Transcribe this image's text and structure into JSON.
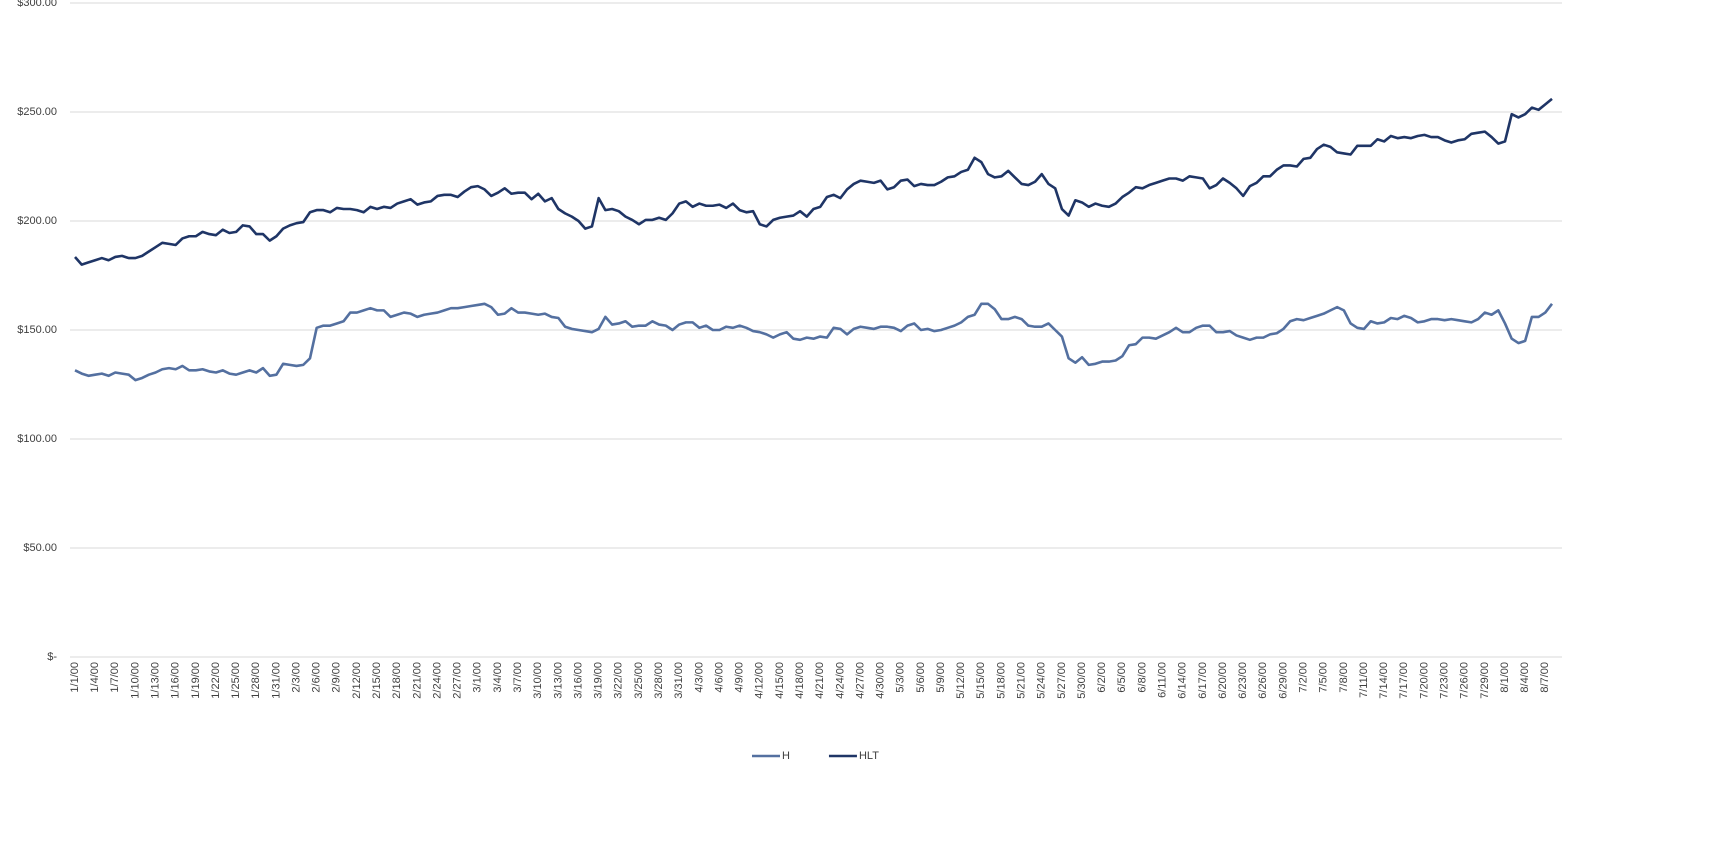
{
  "chart_data": {
    "type": "line",
    "categories": [
      "1/1/00",
      null,
      null,
      "1/4/00",
      null,
      null,
      "1/7/00",
      null,
      null,
      "1/10/00",
      null,
      null,
      "1/13/00",
      null,
      null,
      "1/16/00",
      null,
      null,
      "1/19/00",
      null,
      null,
      "1/22/00",
      null,
      null,
      "1/25/00",
      null,
      null,
      "1/28/00",
      null,
      null,
      "1/31/00",
      null,
      null,
      "2/3/00",
      null,
      null,
      "2/6/00",
      null,
      null,
      "2/9/00",
      null,
      null,
      "2/12/00",
      null,
      null,
      "2/15/00",
      null,
      null,
      "2/18/00",
      null,
      null,
      "2/21/00",
      null,
      null,
      "2/24/00",
      null,
      null,
      "2/27/00",
      null,
      null,
      "3/1/00",
      null,
      null,
      "3/4/00",
      null,
      null,
      "3/7/00",
      null,
      null,
      "3/10/00",
      null,
      null,
      "3/13/00",
      null,
      null,
      "3/16/00",
      null,
      null,
      "3/19/00",
      null,
      null,
      "3/22/00",
      null,
      null,
      "3/25/00",
      null,
      null,
      "3/28/00",
      null,
      null,
      "3/31/00",
      null,
      null,
      "4/3/00",
      null,
      null,
      "4/6/00",
      null,
      null,
      "4/9/00",
      null,
      null,
      "4/12/00",
      null,
      null,
      "4/15/00",
      null,
      null,
      "4/18/00",
      null,
      null,
      "4/21/00",
      null,
      null,
      "4/24/00",
      null,
      null,
      "4/27/00",
      null,
      null,
      "4/30/00",
      null,
      null,
      "5/3/00",
      null,
      null,
      "5/6/00",
      null,
      null,
      "5/9/00",
      null,
      null,
      "5/12/00",
      null,
      null,
      "5/15/00",
      null,
      null,
      "5/18/00",
      null,
      null,
      "5/21/00",
      null,
      null,
      "5/24/00",
      null,
      null,
      "5/27/00",
      null,
      null,
      "5/30/00",
      null,
      null,
      "6/2/00",
      null,
      null,
      "6/5/00",
      null,
      null,
      "6/8/00",
      null,
      null,
      "6/11/00",
      null,
      null,
      "6/14/00",
      null,
      null,
      "6/17/00",
      null,
      null,
      "6/20/00",
      null,
      null,
      "6/23/00",
      null,
      null,
      "6/26/00",
      null,
      null,
      "6/29/00",
      null,
      null,
      "7/2/00",
      null,
      null,
      "7/5/00",
      null,
      null,
      "7/8/00",
      null,
      null,
      "7/11/00",
      null,
      null,
      "7/14/00",
      null,
      null,
      "7/17/00",
      null,
      null,
      "7/20/00",
      null,
      null,
      "7/23/00",
      null,
      null,
      "7/26/00",
      null,
      null,
      "7/29/00",
      null,
      null,
      "8/1/00",
      null,
      null,
      "8/4/00",
      null,
      null,
      "8/7/00",
      null
    ],
    "series": [
      {
        "name": "H",
        "color": "#5470a0",
        "values": [
          131.5,
          130,
          129,
          129.5,
          130,
          129,
          130.5,
          130,
          129.5,
          127,
          128,
          129.5,
          130.5,
          132,
          132.5,
          132,
          133.5,
          131.5,
          131.5,
          132,
          131,
          130.5,
          131.5,
          130,
          129.5,
          130.5,
          131.5,
          130.5,
          132.5,
          129,
          129.5,
          134.5,
          134,
          133.5,
          134,
          137,
          151,
          152,
          152,
          153,
          154,
          158,
          158,
          159,
          160,
          159,
          159,
          156,
          157,
          158,
          157.5,
          156,
          157,
          157.5,
          158,
          159,
          160,
          160,
          160.5,
          161,
          161.5,
          162,
          160.5,
          157,
          157.5,
          160,
          158,
          158,
          157.5,
          157,
          157.5,
          156,
          155.5,
          151.5,
          150.5,
          150,
          149.5,
          149,
          150.5,
          156,
          152.5,
          153,
          154,
          151.5,
          152,
          152,
          154,
          152.5,
          152,
          150,
          152.5,
          153.5,
          153.5,
          151,
          152,
          150,
          150,
          151.5,
          151,
          152,
          151,
          149.5,
          149,
          148,
          146.5,
          148,
          149,
          146,
          145.5,
          146.5,
          146,
          147,
          146.5,
          151,
          150.5,
          148,
          150.5,
          151.5,
          151,
          150.5,
          151.5,
          151.5,
          151,
          149.5,
          152,
          153,
          150,
          150.5,
          149.5,
          150,
          151,
          152,
          153.5,
          156,
          157,
          162,
          162,
          159.5,
          155,
          155,
          156,
          155,
          152,
          151.5,
          151.5,
          153,
          150,
          147,
          137,
          135,
          137.5,
          134,
          134.5,
          135.5,
          135.5,
          136,
          138,
          143,
          143.5,
          146.5,
          146.5,
          146,
          147.5,
          149,
          151,
          149,
          149,
          151,
          152,
          152,
          149,
          149,
          149.5,
          147.5,
          146.5,
          145.5,
          146.5,
          146.5,
          148,
          148.5,
          150.5,
          154,
          155,
          154.5,
          155.5,
          156.5,
          157.5,
          159,
          160.5,
          159,
          153,
          151,
          150.5,
          154,
          153,
          153.5,
          155.5,
          155,
          156.5,
          155.5,
          153.5,
          154,
          155,
          155,
          154.5,
          155,
          154.5,
          154,
          153.5,
          155,
          158,
          157,
          159,
          153,
          146,
          144,
          145,
          156,
          156,
          158,
          162
        ]
      },
      {
        "name": "HLT",
        "color": "#1f3566",
        "values": [
          183.5,
          180,
          181,
          182,
          183,
          182,
          183.5,
          184,
          183,
          183,
          184,
          186,
          188,
          190,
          189.5,
          189,
          192,
          193,
          193,
          195,
          194,
          193.5,
          196,
          194.5,
          195,
          198,
          197.5,
          194,
          194,
          191,
          193,
          196.5,
          198,
          199,
          199.5,
          204,
          205,
          205,
          204,
          206,
          205.5,
          205.5,
          205,
          204,
          206.5,
          205.5,
          206.5,
          206,
          208,
          209,
          210,
          207.5,
          208.5,
          209,
          211.5,
          212,
          212,
          211,
          213.5,
          215.5,
          216,
          214.5,
          211.5,
          213,
          215,
          212.5,
          213,
          213,
          210,
          212.5,
          209,
          210.5,
          205.5,
          203.5,
          202,
          200,
          196.5,
          197.5,
          210.5,
          205,
          205.5,
          204.5,
          202,
          200.5,
          198.5,
          200.5,
          200.5,
          201.5,
          200.5,
          203.5,
          208,
          209,
          206.5,
          208,
          207,
          207,
          207.5,
          206,
          208,
          205,
          204,
          204.5,
          198.5,
          197.5,
          200.5,
          201.5,
          202,
          202.5,
          204.5,
          202,
          205.5,
          206.5,
          211,
          212,
          210.5,
          214.5,
          217,
          218.5,
          218,
          217.5,
          218.5,
          214.5,
          215.5,
          218.5,
          219,
          216,
          217,
          216.5,
          216.5,
          218,
          220,
          220.5,
          222.5,
          223.5,
          229,
          227,
          221.5,
          220,
          220.5,
          223,
          220,
          217,
          216.5,
          218,
          221.5,
          217,
          215,
          205.5,
          202.5,
          209.5,
          208.5,
          206.5,
          208,
          207,
          206.5,
          208,
          211,
          213,
          215.5,
          215,
          216.5,
          217.5,
          218.5,
          219.5,
          219.5,
          218.5,
          220.5,
          220,
          219.5,
          215,
          216.5,
          219.5,
          217.5,
          215,
          211.5,
          216,
          217.5,
          220.5,
          220.5,
          223.5,
          225.5,
          225.5,
          225,
          228.5,
          229,
          233,
          235,
          234,
          231.5,
          231,
          230.5,
          234.5,
          234.5,
          234.5,
          237.5,
          236.5,
          239,
          238,
          238.5,
          238,
          239,
          239.5,
          238.5,
          238.5,
          237,
          236,
          237,
          237.5,
          240,
          240.5,
          241,
          238.5,
          235.5,
          236.5,
          249,
          247.5,
          249,
          252,
          251,
          253.5,
          256
        ]
      }
    ],
    "ylim": [
      0,
      300
    ],
    "yticks": [
      {
        "value": 0,
        "label": "$-"
      },
      {
        "value": 50,
        "label": "$50.00"
      },
      {
        "value": 100,
        "label": "$100.00"
      },
      {
        "value": 150,
        "label": "$150.00"
      },
      {
        "value": 200,
        "label": "$200.00"
      },
      {
        "value": 250,
        "label": "$250.00"
      },
      {
        "value": 300,
        "label": "$300.00"
      }
    ],
    "grid": true,
    "legend": "bottom"
  }
}
